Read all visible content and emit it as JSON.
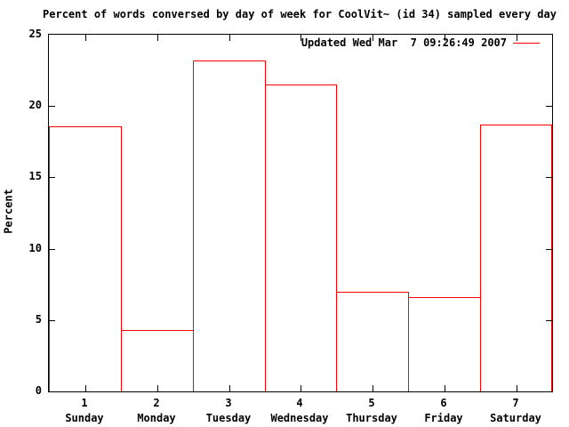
{
  "colors": {
    "accent": "#ff0000",
    "foreground": "#000000",
    "background": "#ffffff"
  },
  "chart_data": {
    "type": "bar",
    "title": "Percent of words conversed by day of week for CoolVit~ (id 34) sampled every day",
    "legend": "Updated Wed Mar  7 09:26:49 2007",
    "legend_position": "top-right-inside",
    "ylabel": "Percent",
    "xlabel": "",
    "ylim": [
      0,
      25
    ],
    "yticks": [
      "0",
      "5",
      "10",
      "15",
      "20",
      "25"
    ],
    "x_numbers": [
      "1",
      "2",
      "3",
      "4",
      "5",
      "6",
      "7"
    ],
    "categories": [
      "Sunday",
      "Monday",
      "Tuesday",
      "Wednesday",
      "Thursday",
      "Friday",
      "Saturday"
    ],
    "values": [
      18.6,
      4.3,
      23.2,
      21.5,
      7.0,
      6.6,
      18.7
    ],
    "bar_style": "outline",
    "bar_color": "#ff0000",
    "grid": false
  }
}
